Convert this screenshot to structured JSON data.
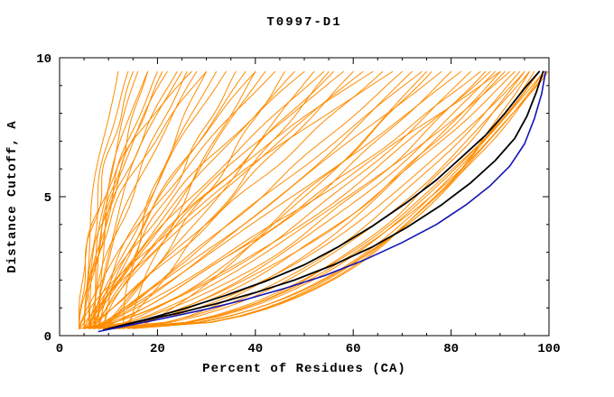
{
  "chart_data": {
    "type": "line",
    "title": "T0997-D1",
    "xlabel": "Percent of Residues (CA)",
    "ylabel": "Distance Cutoff, A",
    "xlim": [
      0,
      100
    ],
    "ylim": [
      0,
      10
    ],
    "x_major_ticks": [
      0,
      20,
      40,
      60,
      80,
      100
    ],
    "x_minor_step": 5,
    "y_major_ticks": [
      0,
      5,
      10
    ],
    "y_minor_step": 1,
    "grid": false,
    "legend": "none",
    "colors": {
      "model_lines": "#FF8C00",
      "reference_black": "#000000",
      "reference_blue": "#1414B8",
      "axis": "#000000",
      "background": "#FFFFFF"
    },
    "series": [
      {
        "name": "black-curve-1",
        "color_key": "reference_black",
        "width": 1.8,
        "points": [
          [
            9,
            0.2
          ],
          [
            16,
            0.5
          ],
          [
            24,
            0.8
          ],
          [
            32,
            1.15
          ],
          [
            40,
            1.55
          ],
          [
            48,
            2.0
          ],
          [
            56,
            2.55
          ],
          [
            64,
            3.2
          ],
          [
            71,
            3.9
          ],
          [
            78,
            4.7
          ],
          [
            84,
            5.5
          ],
          [
            89,
            6.3
          ],
          [
            93,
            7.1
          ],
          [
            95.5,
            7.9
          ],
          [
            97.5,
            8.8
          ],
          [
            98.8,
            9.5
          ]
        ]
      },
      {
        "name": "black-curve-2",
        "color_key": "reference_black",
        "width": 1.8,
        "points": [
          [
            10,
            0.25
          ],
          [
            18,
            0.6
          ],
          [
            26,
            1.0
          ],
          [
            34,
            1.45
          ],
          [
            42,
            1.95
          ],
          [
            50,
            2.55
          ],
          [
            57,
            3.2
          ],
          [
            64,
            3.95
          ],
          [
            71,
            4.8
          ],
          [
            77,
            5.6
          ],
          [
            82,
            6.4
          ],
          [
            87,
            7.2
          ],
          [
            91,
            8.0
          ],
          [
            95,
            8.9
          ],
          [
            98,
            9.5
          ]
        ]
      },
      {
        "name": "blue-curve",
        "color_key": "reference_blue",
        "width": 1.6,
        "points": [
          [
            8,
            0.15
          ],
          [
            15,
            0.4
          ],
          [
            22,
            0.65
          ],
          [
            30,
            0.95
          ],
          [
            38,
            1.3
          ],
          [
            46,
            1.7
          ],
          [
            54,
            2.15
          ],
          [
            62,
            2.7
          ],
          [
            70,
            3.35
          ],
          [
            77,
            4.0
          ],
          [
            83,
            4.7
          ],
          [
            88,
            5.4
          ],
          [
            92,
            6.1
          ],
          [
            95,
            6.9
          ],
          [
            97,
            7.8
          ],
          [
            98.5,
            8.7
          ],
          [
            99.3,
            9.5
          ]
        ]
      }
    ],
    "orange_model_curves": {
      "encoding": "each entry [x_start_percent, x_at_top_percent, shape_exponent, wiggle_amp]; curves span distance cutoff 0.25 to 9.5 A",
      "y_start": 0.25,
      "y_end": 9.5,
      "params": [
        [
          5,
          12,
          1.8,
          1.0
        ],
        [
          6,
          14,
          2.2,
          1.0
        ],
        [
          4,
          15,
          1.5,
          1.2
        ],
        [
          7,
          16,
          2.0,
          0.8
        ],
        [
          5,
          18,
          1.3,
          1.0
        ],
        [
          8,
          18,
          2.4,
          1.0
        ],
        [
          6,
          20,
          1.7,
          1.2
        ],
        [
          4,
          21,
          1.4,
          1.0
        ],
        [
          7,
          22,
          2.1,
          0.9
        ],
        [
          5,
          24,
          1.6,
          1.1
        ],
        [
          8,
          25,
          1.9,
          1.0
        ],
        [
          6,
          26,
          1.3,
          1.2
        ],
        [
          4,
          27,
          2.3,
          0.8
        ],
        [
          7,
          28,
          1.5,
          1.0
        ],
        [
          5,
          30,
          1.8,
          1.1
        ],
        [
          6,
          32,
          1.1,
          1.3
        ],
        [
          8,
          34,
          1.4,
          1.0
        ],
        [
          5,
          36,
          0.9,
          1.2
        ],
        [
          7,
          38,
          1.2,
          1.1
        ],
        [
          9,
          40,
          1.5,
          0.9
        ],
        [
          6,
          42,
          1.0,
          1.3
        ],
        [
          4,
          44,
          1.3,
          1.0
        ],
        [
          8,
          46,
          0.85,
          1.2
        ],
        [
          5,
          48,
          1.15,
          1.0
        ],
        [
          7,
          50,
          1.45,
          1.1
        ],
        [
          9,
          52,
          0.95,
          1.2
        ],
        [
          6,
          54,
          1.25,
          0.9
        ],
        [
          4,
          56,
          1.05,
          1.3
        ],
        [
          8,
          58,
          1.35,
          1.0
        ],
        [
          5,
          60,
          0.9,
          1.2
        ],
        [
          7,
          62,
          1.2,
          1.1
        ],
        [
          9,
          64,
          1.5,
          0.9
        ],
        [
          6,
          66,
          1.0,
          1.2
        ],
        [
          4,
          68,
          1.3,
          1.0
        ],
        [
          8,
          70,
          0.95,
          1.1
        ],
        [
          6,
          72,
          0.8,
          1.2
        ],
        [
          8,
          74,
          1.0,
          1.0
        ],
        [
          5,
          76,
          0.7,
          1.3
        ],
        [
          7,
          78,
          0.95,
          1.0
        ],
        [
          9,
          80,
          0.75,
          1.1
        ],
        [
          6,
          82,
          0.9,
          1.2
        ],
        [
          4,
          84,
          0.65,
          1.0
        ],
        [
          8,
          86,
          0.85,
          1.1
        ],
        [
          5,
          88,
          0.7,
          1.2
        ],
        [
          7,
          90,
          0.9,
          1.0
        ],
        [
          9,
          92,
          0.75,
          1.1
        ],
        [
          8,
          94,
          0.5,
          0.8
        ],
        [
          10,
          95,
          0.45,
          0.7
        ],
        [
          9,
          96,
          0.5,
          0.8
        ],
        [
          11,
          97,
          0.4,
          0.6
        ],
        [
          10,
          98,
          0.45,
          0.7
        ],
        [
          12,
          99,
          0.5,
          0.6
        ],
        [
          9,
          99.5,
          0.42,
          0.5
        ],
        [
          11,
          100,
          0.48,
          0.6
        ],
        [
          10,
          96,
          0.38,
          0.7
        ],
        [
          12,
          98,
          0.44,
          0.6
        ],
        [
          6,
          93,
          0.6,
          1.0
        ],
        [
          7,
          91,
          0.58,
          1.0
        ],
        [
          8,
          89,
          0.62,
          1.0
        ],
        [
          5,
          87,
          0.6,
          1.1
        ],
        [
          6,
          95,
          0.55,
          0.9
        ],
        [
          14,
          40,
          1.2,
          1.0
        ],
        [
          13,
          55,
          1.0,
          1.0
        ],
        [
          15,
          75,
          0.8,
          1.0
        ],
        [
          13,
          30,
          1.6,
          1.0
        ],
        [
          14,
          90,
          0.6,
          1.0
        ],
        [
          15,
          99,
          0.45,
          0.6
        ]
      ]
    }
  }
}
